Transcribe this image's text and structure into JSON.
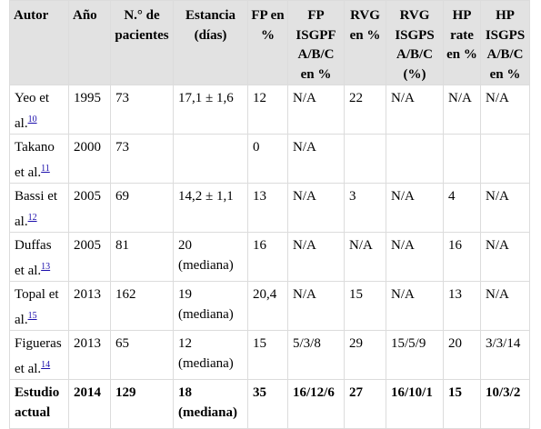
{
  "headers": {
    "autor": "Autor",
    "anio": "Año",
    "n_pacientes": [
      "N.° de",
      "pacientes"
    ],
    "estancia": [
      "Estancia",
      "(días)"
    ],
    "fp_pct": [
      "FP en",
      "%"
    ],
    "fp_isgpf": [
      "FP",
      "ISGPF",
      "A/B/C",
      "en %"
    ],
    "rvg_pct": [
      "RVG",
      "en %"
    ],
    "rvg_isgps": [
      "RVG",
      "ISGPS",
      "A/B/C",
      "(%)"
    ],
    "hp_rate": [
      "HP",
      "rate",
      "en %"
    ],
    "hp_isgps": [
      "HP",
      "ISGPS",
      "A/B/C",
      "en %"
    ]
  },
  "rows": [
    {
      "autor": [
        "Yeo et",
        "al."
      ],
      "ref": "10",
      "anio": "1995",
      "n": "73",
      "estancia": [
        "17,1 ± 1,6"
      ],
      "fp": "12",
      "fp_isgpf": "N/A",
      "rvg": "22",
      "rvg_isgps": "N/A",
      "hp_rate": "N/A",
      "hp_isgps": "N/A"
    },
    {
      "autor": [
        "Takano",
        "et al."
      ],
      "ref": "11",
      "anio": "2000",
      "n": "73",
      "estancia": [
        ""
      ],
      "fp": "0",
      "fp_isgpf": "N/A",
      "rvg": "",
      "rvg_isgps": "",
      "hp_rate": "",
      "hp_isgps": ""
    },
    {
      "autor": [
        "Bassi et",
        "al."
      ],
      "ref": "12",
      "anio": "2005",
      "n": "69",
      "estancia": [
        "14,2 ± 1,1"
      ],
      "fp": "13",
      "fp_isgpf": "N/A",
      "rvg": "3",
      "rvg_isgps": "N/A",
      "hp_rate": "4",
      "hp_isgps": "N/A"
    },
    {
      "autor": [
        "Duffas",
        "et al."
      ],
      "ref": "13",
      "anio": "2005",
      "n": "81",
      "estancia": [
        "20",
        "(mediana)"
      ],
      "fp": "16",
      "fp_isgpf": "N/A",
      "rvg": "N/A",
      "rvg_isgps": "N/A",
      "hp_rate": "16",
      "hp_isgps": "N/A"
    },
    {
      "autor": [
        "Topal et",
        "al."
      ],
      "ref": "15",
      "anio": "2013",
      "n": "162",
      "estancia": [
        "19",
        "(mediana)"
      ],
      "fp": "20,4",
      "fp_isgpf": "N/A",
      "rvg": "15",
      "rvg_isgps": "N/A",
      "hp_rate": "13",
      "hp_isgps": "N/A"
    },
    {
      "autor": [
        "Figueras",
        "et al."
      ],
      "ref": "14",
      "anio": "2013",
      "n": "65",
      "estancia": [
        "12",
        "(mediana)"
      ],
      "fp": "15",
      "fp_isgpf": "5/3/8",
      "rvg": "29",
      "rvg_isgps": "15/5/9",
      "hp_rate": "20",
      "hp_isgps": "3/3/14"
    },
    {
      "autor": [
        "Estudio",
        "actual"
      ],
      "ref": "",
      "anio": "2014",
      "n": "129",
      "estancia": [
        "18",
        "(mediana)"
      ],
      "fp": "35",
      "fp_isgpf": "16/12/6",
      "rvg": "27",
      "rvg_isgps": "16/10/1",
      "hp_rate": "15",
      "hp_isgps": "10/3/2"
    }
  ]
}
